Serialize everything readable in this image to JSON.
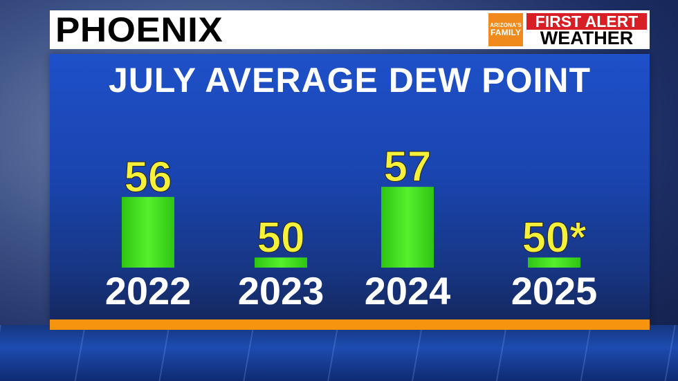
{
  "header": {
    "title": "PHOENIX",
    "logo": {
      "line1": "ARIZONA'S",
      "line2": "FAMILY"
    },
    "brand_top": "FIRST ALERT",
    "brand_bottom": "WEATHER"
  },
  "colors": {
    "panel_blue": "#1a45b0",
    "bar_green": "#3ddc19",
    "value_yellow": "#f5f03a",
    "brand_red": "#d91f26",
    "accent_orange": "#f7940f"
  },
  "chart_data": {
    "type": "bar",
    "title": "JULY AVERAGE DEW POINT",
    "categories": [
      "2022",
      "2023",
      "2024",
      "2025"
    ],
    "values": [
      56,
      50,
      57,
      50
    ],
    "value_labels": [
      "56",
      "50",
      "57",
      "50*"
    ],
    "xlabel": "",
    "ylabel": "",
    "ylim": [
      49,
      57
    ],
    "grid": false,
    "legend": "none"
  }
}
